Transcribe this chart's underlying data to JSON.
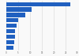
{
  "values": [
    27.0,
    10.5,
    8.0,
    5.0,
    4.2,
    3.8,
    3.5,
    3.2,
    2.9
  ],
  "bar_color": "#2060c0",
  "background_color": "#f9f9f9",
  "grid_color": "#dddddd",
  "xlim": [
    0,
    30
  ],
  "xticks": [
    0,
    5,
    10,
    15,
    20,
    25,
    30
  ],
  "num_bars": 9
}
